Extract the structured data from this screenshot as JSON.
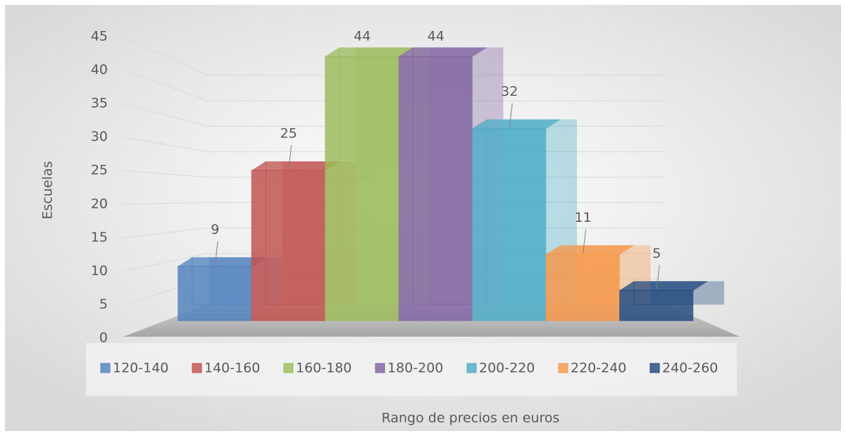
{
  "chart_data": {
    "type": "bar3d",
    "y_label": "Escuelas",
    "x_label": "Rango de precios en euros",
    "ylim": [
      0,
      45
    ],
    "yticks": [
      0,
      5,
      10,
      15,
      20,
      25,
      30,
      35,
      40,
      45
    ],
    "grid": true,
    "legend": "bottom",
    "series": [
      {
        "name": "120-140",
        "color": "#4f81bd",
        "values": [
          9
        ]
      },
      {
        "name": "140-160",
        "color": "#c0504d",
        "values": [
          25
        ]
      },
      {
        "name": "160-180",
        "color": "#9bbb59",
        "values": [
          44
        ]
      },
      {
        "name": "180-200",
        "color": "#8064a2",
        "values": [
          44
        ]
      },
      {
        "name": "200-220",
        "color": "#4bacc6",
        "values": [
          32
        ]
      },
      {
        "name": "220-240",
        "color": "#f79646",
        "values": [
          11
        ]
      },
      {
        "name": "240-260",
        "color": "#1f497d",
        "values": [
          5
        ]
      }
    ]
  }
}
